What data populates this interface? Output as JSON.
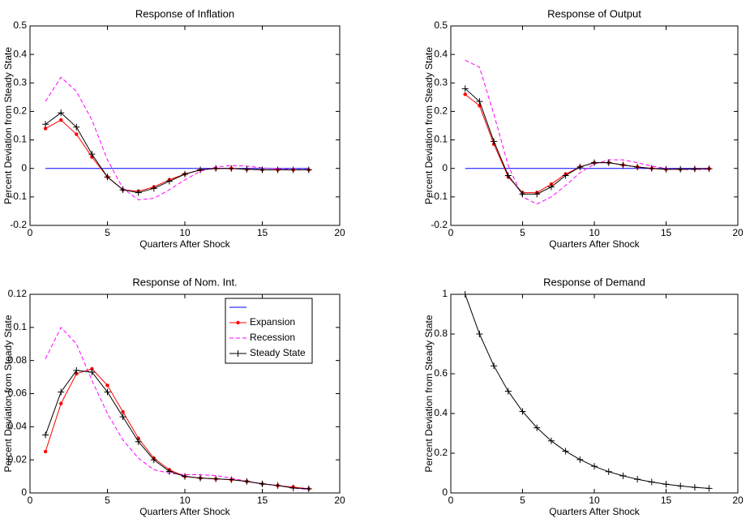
{
  "chart_data": [
    {
      "type": "line",
      "title": "Response of Inflation",
      "xlabel": "Quarters After Shock",
      "ylabel": "Percent Deviation from Steady State",
      "x": [
        1,
        2,
        3,
        4,
        5,
        6,
        7,
        8,
        9,
        10,
        11,
        12,
        13,
        14,
        15,
        16,
        17,
        18
      ],
      "xlim": [
        0,
        20
      ],
      "xticks": [
        0,
        5,
        10,
        15,
        20
      ],
      "ylim": [
        -0.2,
        0.5
      ],
      "yticks": [
        -0.2,
        -0.1,
        0,
        0.1,
        0.2,
        0.3,
        0.4,
        0.5
      ],
      "series": [
        {
          "color": "#0000ff",
          "values": [
            0,
            0,
            0,
            0,
            0,
            0,
            0,
            0,
            0,
            0,
            0,
            0,
            0,
            0,
            0,
            0,
            0,
            0
          ]
        },
        {
          "name": "Expansion",
          "color": "#ff0000",
          "marker": "dot",
          "values": [
            0.14,
            0.17,
            0.12,
            0.04,
            -0.03,
            -0.075,
            -0.08,
            -0.065,
            -0.04,
            -0.02,
            -0.005,
            0,
            0,
            -0.003,
            -0.005,
            -0.005,
            -0.005,
            -0.005
          ]
        },
        {
          "name": "Recession",
          "color": "#ff00ff",
          "dash": true,
          "values": [
            0.235,
            0.32,
            0.27,
            0.17,
            0.03,
            -0.07,
            -0.11,
            -0.105,
            -0.075,
            -0.04,
            -0.01,
            0.005,
            0.01,
            0.008,
            0.002,
            -0.002,
            -0.004,
            -0.004
          ]
        },
        {
          "name": "Steady State",
          "color": "#000000",
          "marker": "plus",
          "values": [
            0.155,
            0.195,
            0.145,
            0.05,
            -0.03,
            -0.075,
            -0.085,
            -0.07,
            -0.045,
            -0.02,
            -0.005,
            0,
            0,
            -0.003,
            -0.005,
            -0.005,
            -0.005,
            -0.005
          ]
        }
      ]
    },
    {
      "type": "line",
      "title": "Response of Output",
      "xlabel": "Quarters After Shock",
      "ylabel": "Percent Deviation from Steady State",
      "x": [
        1,
        2,
        3,
        4,
        5,
        6,
        7,
        8,
        9,
        10,
        11,
        12,
        13,
        14,
        15,
        16,
        17,
        18
      ],
      "xlim": [
        0,
        20
      ],
      "xticks": [
        0,
        5,
        10,
        15,
        20
      ],
      "ylim": [
        -0.2,
        0.5
      ],
      "yticks": [
        -0.2,
        -0.1,
        0,
        0.1,
        0.2,
        0.3,
        0.4,
        0.5
      ],
      "series": [
        {
          "color": "#0000ff",
          "values": [
            0,
            0,
            0,
            0,
            0,
            0,
            0,
            0,
            0,
            0,
            0,
            0,
            0,
            0,
            0,
            0,
            0,
            0
          ]
        },
        {
          "name": "Expansion",
          "color": "#ff0000",
          "marker": "dot",
          "values": [
            0.26,
            0.22,
            0.085,
            -0.03,
            -0.085,
            -0.085,
            -0.055,
            -0.02,
            0.005,
            0.02,
            0.02,
            0.012,
            0.005,
            0,
            -0.003,
            -0.003,
            -0.002,
            -0.001
          ]
        },
        {
          "name": "Recession",
          "color": "#ff00ff",
          "dash": true,
          "values": [
            0.38,
            0.355,
            0.19,
            0.01,
            -0.1,
            -0.125,
            -0.1,
            -0.06,
            -0.015,
            0.015,
            0.03,
            0.03,
            0.02,
            0.008,
            0,
            -0.004,
            -0.004,
            -0.003
          ]
        },
        {
          "name": "Steady State",
          "color": "#000000",
          "marker": "plus",
          "values": [
            0.28,
            0.235,
            0.095,
            -0.025,
            -0.09,
            -0.09,
            -0.065,
            -0.025,
            0.005,
            0.02,
            0.02,
            0.012,
            0.005,
            0,
            -0.003,
            -0.003,
            -0.002,
            -0.001
          ]
        }
      ]
    },
    {
      "type": "line",
      "title": "Response of Nom. Int.",
      "xlabel": "Quarters After Shock",
      "ylabel": "Percent Deviation from Steady State",
      "x": [
        1,
        2,
        3,
        4,
        5,
        6,
        7,
        8,
        9,
        10,
        11,
        12,
        13,
        14,
        15,
        16,
        17,
        18
      ],
      "xlim": [
        0,
        20
      ],
      "xticks": [
        0,
        5,
        10,
        15,
        20
      ],
      "ylim": [
        0,
        0.12
      ],
      "yticks": [
        0,
        0.02,
        0.04,
        0.06,
        0.08,
        0.1,
        0.12
      ],
      "legend": "upper right",
      "series": [
        {
          "color": "#0000ff",
          "values": [
            0,
            0,
            0,
            0,
            0,
            0,
            0,
            0,
            0,
            0,
            0,
            0,
            0,
            0,
            0,
            0,
            0,
            0
          ]
        },
        {
          "name": "Expansion",
          "color": "#ff0000",
          "marker": "dot",
          "values": [
            0.025,
            0.054,
            0.072,
            0.075,
            0.065,
            0.049,
            0.033,
            0.021,
            0.014,
            0.01,
            0.009,
            0.0085,
            0.008,
            0.007,
            0.0055,
            0.0045,
            0.0035,
            0.0025
          ]
        },
        {
          "name": "Recession",
          "color": "#ff00ff",
          "dash": true,
          "values": [
            0.081,
            0.1,
            0.09,
            0.068,
            0.048,
            0.032,
            0.021,
            0.014,
            0.012,
            0.011,
            0.011,
            0.0105,
            0.009,
            0.007,
            0.0055,
            0.0045,
            0.003,
            0.002
          ]
        },
        {
          "name": "Steady State",
          "color": "#000000",
          "marker": "plus",
          "values": [
            0.035,
            0.061,
            0.074,
            0.073,
            0.061,
            0.046,
            0.031,
            0.02,
            0.013,
            0.01,
            0.009,
            0.0085,
            0.008,
            0.007,
            0.0055,
            0.0045,
            0.003,
            0.0025
          ]
        }
      ]
    },
    {
      "type": "line",
      "title": "Response of Demand",
      "xlabel": "Quarters After Shock",
      "ylabel": "Percent Deviation from Steady State",
      "x": [
        1,
        2,
        3,
        4,
        5,
        6,
        7,
        8,
        9,
        10,
        11,
        12,
        13,
        14,
        15,
        16,
        17,
        18
      ],
      "xlim": [
        0,
        20
      ],
      "xticks": [
        0,
        5,
        10,
        15,
        20
      ],
      "ylim": [
        0,
        1
      ],
      "yticks": [
        0,
        0.2,
        0.4,
        0.6,
        0.8,
        1
      ],
      "series": [
        {
          "color": "#0000ff",
          "values": [
            0,
            0,
            0,
            0,
            0,
            0,
            0,
            0,
            0,
            0,
            0,
            0,
            0,
            0,
            0,
            0,
            0,
            0
          ]
        },
        {
          "name": "Steady State",
          "color": "#000000",
          "marker": "plus",
          "values": [
            1,
            0.8,
            0.64,
            0.512,
            0.41,
            0.328,
            0.262,
            0.21,
            0.168,
            0.134,
            0.107,
            0.086,
            0.069,
            0.055,
            0.044,
            0.035,
            0.028,
            0.023
          ]
        }
      ]
    }
  ]
}
